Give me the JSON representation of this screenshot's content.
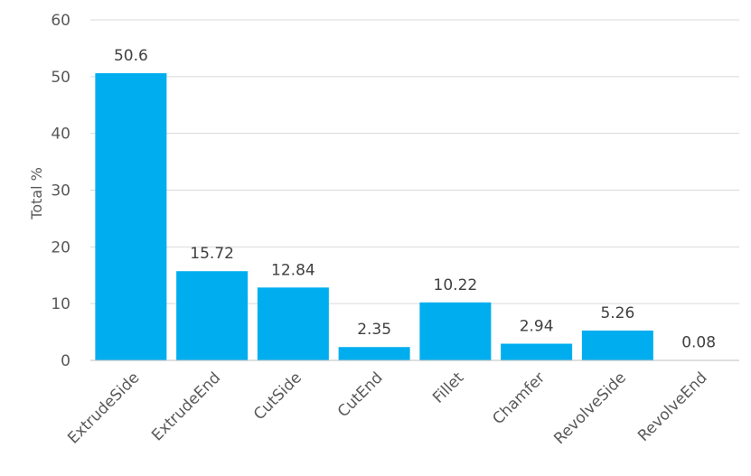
{
  "chart_data": {
    "type": "bar",
    "categories": [
      "ExtrudeSide",
      "ExtrudeEnd",
      "CutSide",
      "CutEnd",
      "Fillet",
      "Chamfer",
      "RevolveSide",
      "RevolveEnd"
    ],
    "values": [
      50.6,
      15.72,
      12.84,
      2.35,
      10.22,
      2.94,
      5.26,
      0.08
    ],
    "data_labels": [
      "50.6",
      "15.72",
      "12.84",
      "2.35",
      "10.22",
      "2.94",
      "5.26",
      "0.08"
    ],
    "title": "",
    "xlabel": "",
    "ylabel": "Total %",
    "ylim": [
      0,
      60
    ],
    "yticks": [
      0,
      10,
      20,
      30,
      40,
      50,
      60
    ],
    "grid": true,
    "bar_color": "#00aeef"
  }
}
